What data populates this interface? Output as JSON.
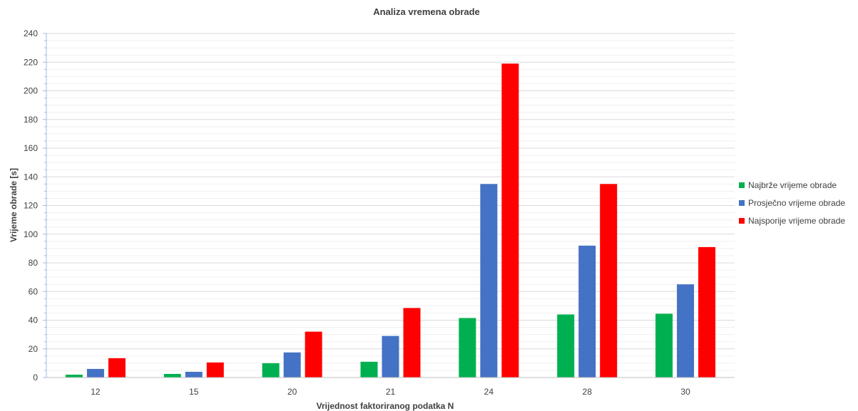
{
  "chart_data": {
    "type": "bar",
    "title": "Analiza vremena obrade",
    "xlabel": "Vrijednost faktoriranog podatka N",
    "ylabel": "Vrijeme obrade [s]",
    "categories": [
      "12",
      "15",
      "20",
      "21",
      "24",
      "28",
      "30"
    ],
    "ylim": [
      0,
      240
    ],
    "yticks": [
      0,
      20,
      40,
      60,
      80,
      100,
      120,
      140,
      160,
      180,
      200,
      220,
      240
    ],
    "grid": true,
    "legend_position": "right",
    "series": [
      {
        "name": "Najbrže vrijeme obrade",
        "color": "#00b050",
        "values": [
          2,
          2.5,
          10,
          11,
          41.5,
          44,
          44.5
        ]
      },
      {
        "name": "Prosječno vrijeme obrade",
        "color": "#4472c4",
        "values": [
          6,
          4,
          17.5,
          29,
          135,
          92,
          65
        ]
      },
      {
        "name": "Najsporije vrijeme obrade",
        "color": "#ff0000",
        "values": [
          13.5,
          10.5,
          32,
          48.5,
          219,
          135,
          91
        ]
      }
    ]
  }
}
